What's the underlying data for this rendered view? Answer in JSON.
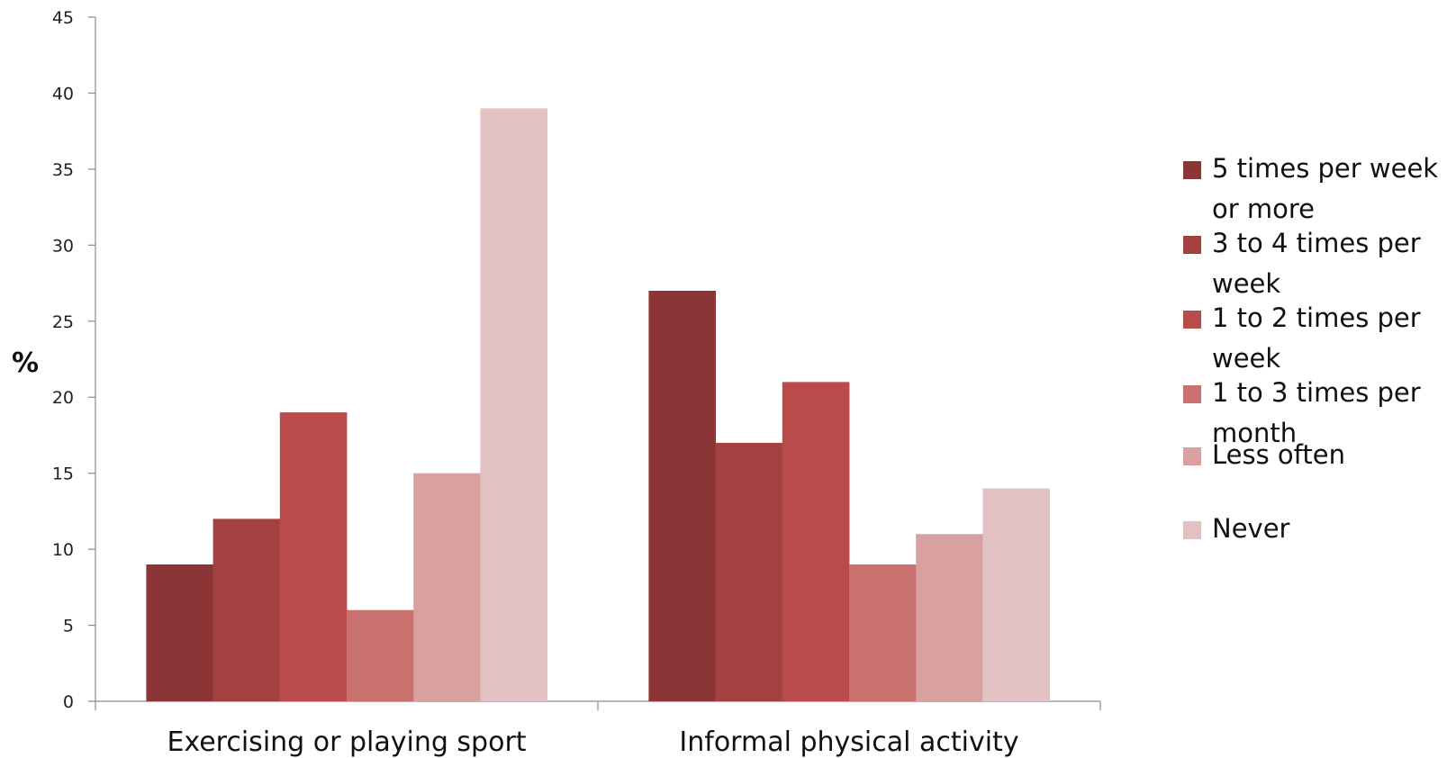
{
  "chart_data": {
    "type": "bar",
    "ylabel": "%",
    "ylim": [
      0,
      45
    ],
    "yticks": [
      "0",
      "5",
      "10",
      "15",
      "20",
      "25",
      "30",
      "35",
      "40",
      "45"
    ],
    "categories": [
      "Exercising or playing sport",
      "Informal physical activity"
    ],
    "legend_position": "right",
    "grid": false,
    "series": [
      {
        "name": "5 times per week or more",
        "color": "#8b3536",
        "values": [
          9,
          27
        ]
      },
      {
        "name": "3 to 4 times per week",
        "color": "#a34140",
        "values": [
          12,
          17
        ]
      },
      {
        "name": "1 to 2 times per week",
        "color": "#b94b4a",
        "values": [
          19,
          21
        ]
      },
      {
        "name": "1 to 3 times per month",
        "color": "#c8716e",
        "values": [
          6,
          9
        ]
      },
      {
        "name": "Less often",
        "color": "#d8a09f",
        "values": [
          15,
          11
        ]
      },
      {
        "name": "Never",
        "color": "#e3c2c4",
        "values": [
          39,
          14
        ]
      }
    ]
  }
}
